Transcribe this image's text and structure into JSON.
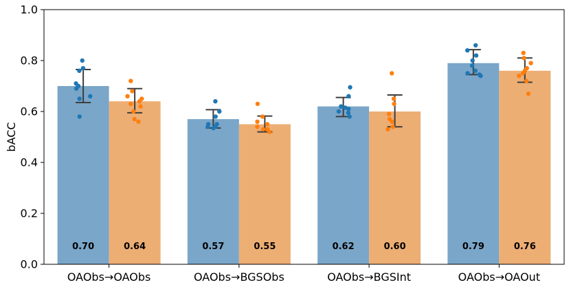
{
  "chart_data": {
    "type": "bar",
    "ylabel": "bACC",
    "ylim": [
      0.0,
      1.0
    ],
    "yticks": [
      "0.0",
      "0.2",
      "0.4",
      "0.6",
      "0.8",
      "1.0"
    ],
    "grid": false,
    "categories": [
      "OAObs→OAObs",
      "OAObs→BGSObs",
      "OAObs→BGSInt",
      "OAObs→OAOut"
    ],
    "series": [
      {
        "color": "#7aa6c9",
        "point_color": "#1f77b4",
        "values": [
          0.7,
          0.57,
          0.62,
          0.79
        ],
        "labels": [
          "0.70",
          "0.57",
          "0.62",
          "0.79"
        ],
        "err_low": [
          0.635,
          0.535,
          0.58,
          0.745
        ],
        "err_high": [
          0.765,
          0.607,
          0.655,
          0.843
        ],
        "points": [
          [
            0.8,
            0.77,
            0.76,
            0.71,
            0.7,
            0.69,
            0.66,
            0.65,
            0.58
          ],
          [
            0.64,
            0.6,
            0.58,
            0.55,
            0.55,
            0.54,
            0.54,
            0.535
          ],
          [
            0.695,
            0.66,
            0.62,
            0.615,
            0.61,
            0.6,
            0.595,
            0.58
          ],
          [
            0.86,
            0.84,
            0.82,
            0.8,
            0.78,
            0.76,
            0.75,
            0.745,
            0.74
          ]
        ]
      },
      {
        "color": "#edae74",
        "point_color": "#ff7f0e",
        "values": [
          0.64,
          0.55,
          0.6,
          0.76
        ],
        "labels": [
          "0.64",
          "0.55",
          "0.60",
          "0.76"
        ],
        "err_low": [
          0.595,
          0.52,
          0.54,
          0.715
        ],
        "err_high": [
          0.69,
          0.582,
          0.665,
          0.81
        ],
        "points": [
          [
            0.72,
            0.68,
            0.66,
            0.65,
            0.64,
            0.63,
            0.62,
            0.6,
            0.57,
            0.56
          ],
          [
            0.63,
            0.58,
            0.56,
            0.55,
            0.54,
            0.53,
            0.53,
            0.52
          ],
          [
            0.75,
            0.65,
            0.63,
            0.59,
            0.57,
            0.56,
            0.54,
            0.53
          ],
          [
            0.83,
            0.81,
            0.79,
            0.77,
            0.76,
            0.75,
            0.74,
            0.72,
            0.67
          ]
        ]
      }
    ]
  }
}
